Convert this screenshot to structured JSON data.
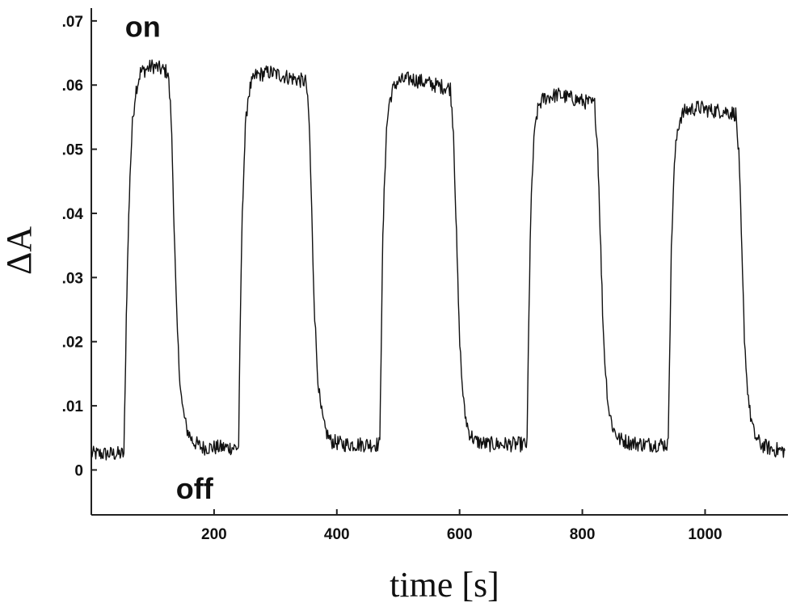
{
  "chart_data": {
    "type": "line",
    "title": "",
    "xlabel": "time [s]",
    "ylabel": "ΔA",
    "xlim": [
      0,
      1135
    ],
    "ylim": [
      -0.007,
      0.072
    ],
    "x_ticks": [
      200,
      400,
      600,
      800,
      1000
    ],
    "x_tick_labels": [
      "200",
      "400",
      "600",
      "800",
      "1000"
    ],
    "y_ticks": [
      0,
      0.01,
      0.02,
      0.03,
      0.04,
      0.05,
      0.06,
      0.07
    ],
    "y_tick_labels": [
      "0",
      ".01",
      ".02",
      ".03",
      ".04",
      ".05",
      ".06",
      ".07"
    ],
    "grid": false,
    "series": [
      {
        "color": "#111111",
        "x": [
          0,
          53,
          55,
          57,
          60,
          63,
          67,
          72,
          80,
          100,
          125,
          130,
          133,
          136,
          139,
          143,
          148,
          155,
          165,
          180,
          200,
          220,
          240,
          241,
          243,
          245,
          248,
          251,
          255,
          260,
          268,
          290,
          310,
          330,
          350,
          355,
          358,
          361,
          364,
          368,
          373,
          380,
          390,
          410,
          430,
          450,
          470,
          471,
          473,
          475,
          478,
          481,
          485,
          490,
          498,
          520,
          540,
          560,
          585,
          590,
          593,
          596,
          599,
          603,
          608,
          615,
          625,
          645,
          665,
          685,
          710,
          711,
          713,
          715,
          718,
          721,
          725,
          730,
          738,
          760,
          780,
          800,
          820,
          825,
          828,
          831,
          834,
          838,
          843,
          850,
          860,
          880,
          900,
          920,
          940,
          941,
          943,
          945,
          948,
          951,
          955,
          960,
          968,
          990,
          1010,
          1030,
          1050,
          1055,
          1058,
          1061,
          1064,
          1068,
          1073,
          1080,
          1090,
          1110,
          1130
        ],
        "y": [
          0.0025,
          0.0025,
          0.012,
          0.024,
          0.036,
          0.046,
          0.054,
          0.059,
          0.062,
          0.063,
          0.062,
          0.055,
          0.045,
          0.034,
          0.024,
          0.016,
          0.01,
          0.0065,
          0.0045,
          0.0035,
          0.0035,
          0.0035,
          0.0035,
          0.012,
          0.024,
          0.036,
          0.046,
          0.053,
          0.058,
          0.06,
          0.0615,
          0.062,
          0.0615,
          0.061,
          0.0605,
          0.054,
          0.044,
          0.033,
          0.024,
          0.016,
          0.01,
          0.0065,
          0.0045,
          0.004,
          0.004,
          0.004,
          0.004,
          0.012,
          0.024,
          0.036,
          0.046,
          0.053,
          0.057,
          0.059,
          0.0605,
          0.061,
          0.0605,
          0.06,
          0.0595,
          0.053,
          0.043,
          0.033,
          0.023,
          0.015,
          0.009,
          0.006,
          0.0045,
          0.004,
          0.004,
          0.004,
          0.004,
          0.012,
          0.024,
          0.036,
          0.045,
          0.051,
          0.055,
          0.057,
          0.058,
          0.0585,
          0.058,
          0.0575,
          0.057,
          0.05,
          0.041,
          0.031,
          0.022,
          0.015,
          0.0095,
          0.0065,
          0.0048,
          0.0042,
          0.004,
          0.004,
          0.004,
          0.012,
          0.023,
          0.034,
          0.043,
          0.049,
          0.053,
          0.055,
          0.056,
          0.0565,
          0.056,
          0.056,
          0.0555,
          0.049,
          0.04,
          0.03,
          0.021,
          0.014,
          0.009,
          0.0055,
          0.004,
          0.0032,
          0.003
        ],
        "noise": 0.0012
      }
    ],
    "annotations": [
      {
        "text": "on",
        "x": 55,
        "y": 0.0675
      },
      {
        "text": "off",
        "x": 138,
        "y": -0.0045
      }
    ]
  }
}
